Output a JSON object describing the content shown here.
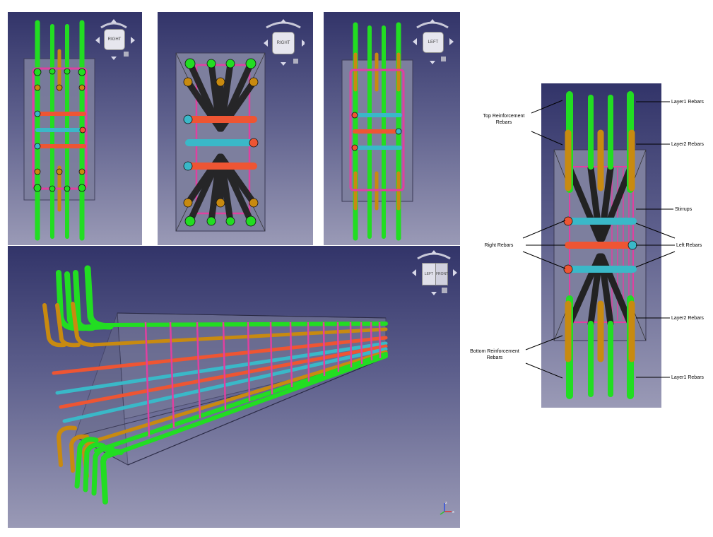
{
  "views": {
    "right_view": {
      "navcube_label": "RIGHT"
    },
    "front_view": {
      "navcube_label": "RIGHT"
    },
    "left_view": {
      "navcube_label": "LEFT"
    },
    "iso_view": {
      "navcube_label_a": "LEFT",
      "navcube_label_b": "FRONT",
      "axis_x": "x",
      "axis_y": "y",
      "axis_z": "z"
    }
  },
  "callouts": {
    "top_reinforcement": "Top Reinforcement\nRebars",
    "right_rebars": "Right Rebars",
    "bottom_reinforcement": "Bottom Reinforcement\nRebars",
    "layer1_top": "Layer1 Rebars",
    "layer2_top": "Layer2 Rebars",
    "stirrups": "Stirrups",
    "left_rebars": "Left Rebars",
    "layer2_bottom": "Layer2 Rebars",
    "layer1_bottom": "Layer1 Rebars"
  },
  "colors": {
    "layer1": "#22dd22",
    "layer2": "#c88a10",
    "left": "#3ab8c8",
    "right": "#ee5533",
    "stirrup": "#e040a0",
    "concrete": "#8a8ca8"
  }
}
